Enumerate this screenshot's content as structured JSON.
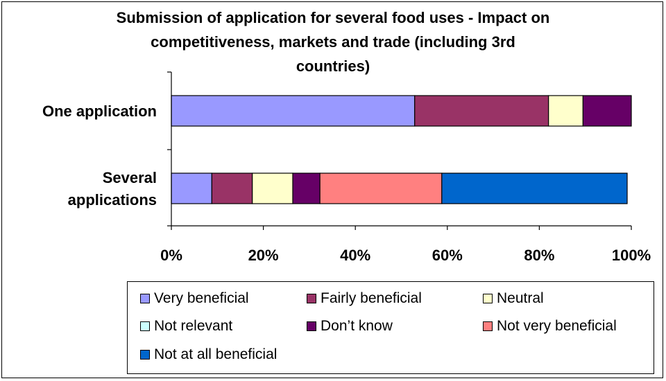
{
  "chart_data": {
    "type": "bar",
    "orientation": "horizontal",
    "stacked": "percent",
    "title": "Submission of application for several food uses - Impact on competitiveness, markets and trade (including 3rd countries)",
    "title_lines": [
      "Submission of application for several food uses - Impact on",
      "competitiveness, markets and trade (including 3rd",
      "countries)"
    ],
    "categories": [
      "One application",
      "Several applications"
    ],
    "category_label_lines": [
      [
        "One application"
      ],
      [
        "Several",
        "applications"
      ]
    ],
    "xlim": [
      0,
      100
    ],
    "xticks": [
      "0%",
      "20%",
      "40%",
      "60%",
      "80%",
      "100%"
    ],
    "grid": false,
    "legend_position": "bottom",
    "series": [
      {
        "name": "Very beneficial",
        "color": "#9999FF",
        "values": [
          52.9,
          8.8
        ]
      },
      {
        "name": "Fairly beneficial",
        "color": "#993366",
        "values": [
          29.1,
          8.8
        ]
      },
      {
        "name": "Neutral",
        "color": "#FFFFCC",
        "values": [
          7.5,
          8.8
        ]
      },
      {
        "name": "Not relevant",
        "color": "#CCFFFF",
        "values": [
          0,
          0
        ]
      },
      {
        "name": "Don’t know",
        "color": "#660066",
        "values": [
          10.5,
          5.9
        ]
      },
      {
        "name": "Not very beneficial",
        "color": "#FF8080",
        "values": [
          0,
          26.5
        ]
      },
      {
        "name": "Not at all beneficial",
        "color": "#0066CC",
        "values": [
          0,
          40.3
        ]
      }
    ]
  }
}
